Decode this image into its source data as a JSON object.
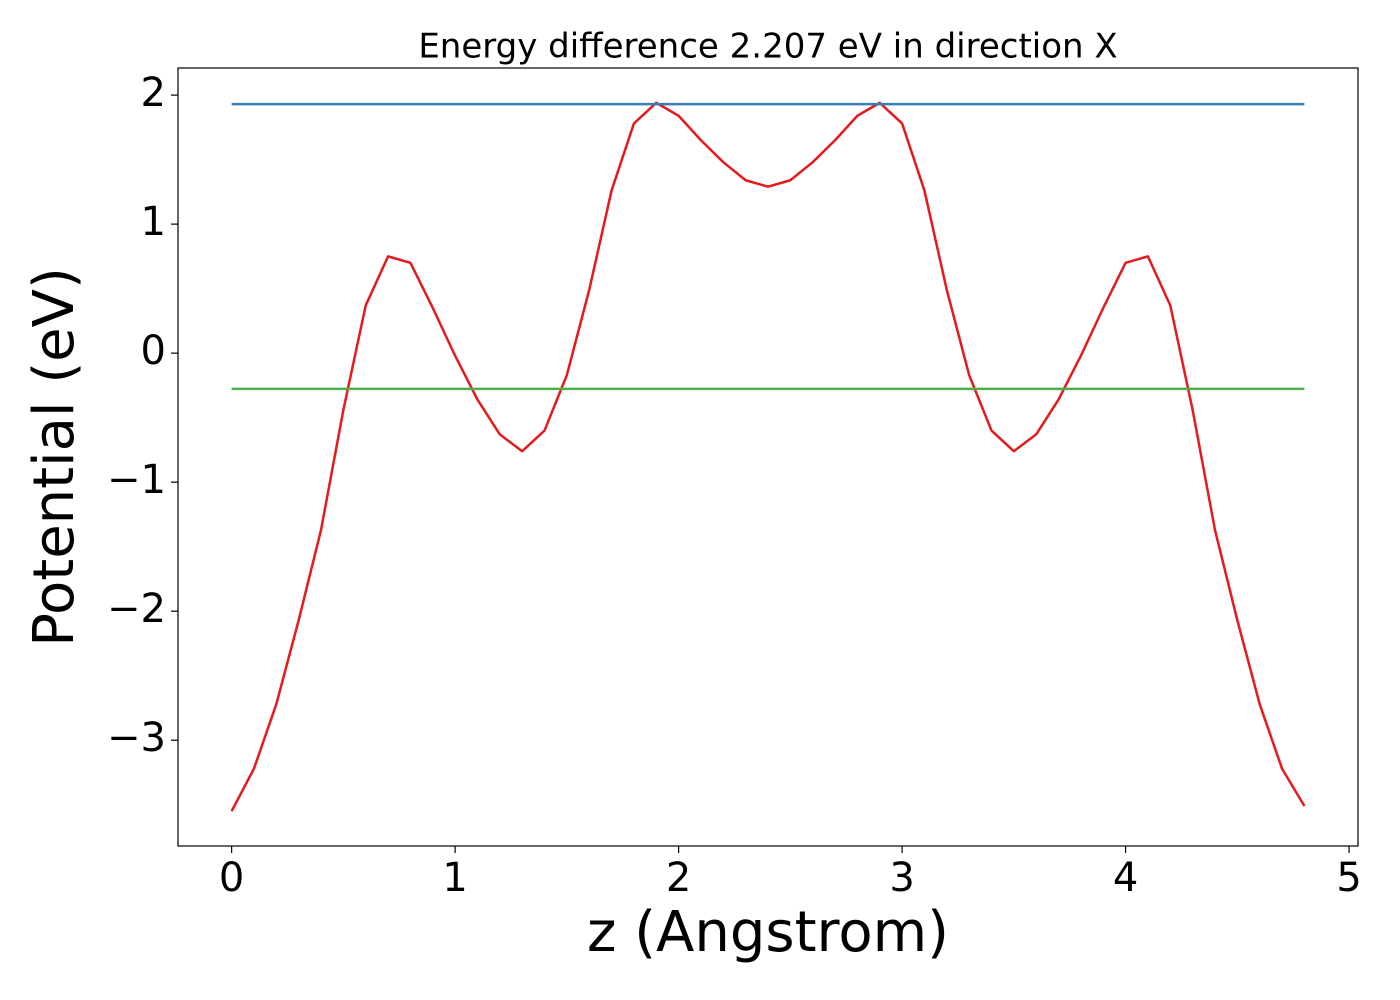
{
  "chart_data": {
    "type": "line",
    "title": "Energy difference 2.207 eV in direction X",
    "x_label": "z (Angstrom)",
    "y_label": "Potential (eV)",
    "xlim": [
      -0.24,
      5.04
    ],
    "ylim": [
      -3.82,
      2.21
    ],
    "xticks": [
      0,
      1,
      2,
      3,
      4,
      5
    ],
    "yticks": [
      {
        "value": -3,
        "label": "−3"
      },
      {
        "value": -2,
        "label": "−2"
      },
      {
        "value": -1,
        "label": "−1"
      },
      0,
      1,
      2
    ],
    "series": [
      {
        "color": "#e41a1c",
        "x": [
          0,
          0.1,
          0.2,
          0.3,
          0.4,
          0.5,
          0.6,
          0.7,
          0.8,
          0.9,
          1.0,
          1.1,
          1.2,
          1.3,
          1.4,
          1.5,
          1.6,
          1.7,
          1.8,
          1.9,
          2.0,
          2.1,
          2.2,
          2.3,
          2.4,
          2.5,
          2.6,
          2.7,
          2.8,
          2.9,
          3.0,
          3.1,
          3.2,
          3.3,
          3.4,
          3.5,
          3.6,
          3.7,
          3.8,
          3.9,
          4.0,
          4.1,
          4.2,
          4.3,
          4.4,
          4.5,
          4.6,
          4.7,
          4.8
        ],
        "values": [
          -3.55,
          -3.22,
          -2.72,
          -2.07,
          -1.37,
          -0.44,
          0.37,
          0.75,
          0.7,
          0.35,
          -0.02,
          -0.36,
          -0.63,
          -0.76,
          -0.6,
          -0.17,
          0.49,
          1.26,
          1.78,
          1.94,
          1.84,
          1.65,
          1.48,
          1.34,
          1.29,
          1.34,
          1.48,
          1.65,
          1.84,
          1.94,
          1.78,
          1.26,
          0.49,
          -0.17,
          -0.6,
          -0.76,
          -0.63,
          -0.36,
          -0.02,
          0.35,
          0.7,
          0.75,
          0.37,
          -0.44,
          -1.37,
          -2.07,
          -2.72,
          -3.22,
          -3.51
        ]
      },
      {
        "color": "#377eb8",
        "x": [
          0,
          4.8
        ],
        "values": [
          1.93,
          1.93
        ]
      },
      {
        "color": "#4daf4a",
        "x": [
          0,
          4.8
        ],
        "values": [
          -0.277,
          -0.277
        ]
      }
    ]
  }
}
